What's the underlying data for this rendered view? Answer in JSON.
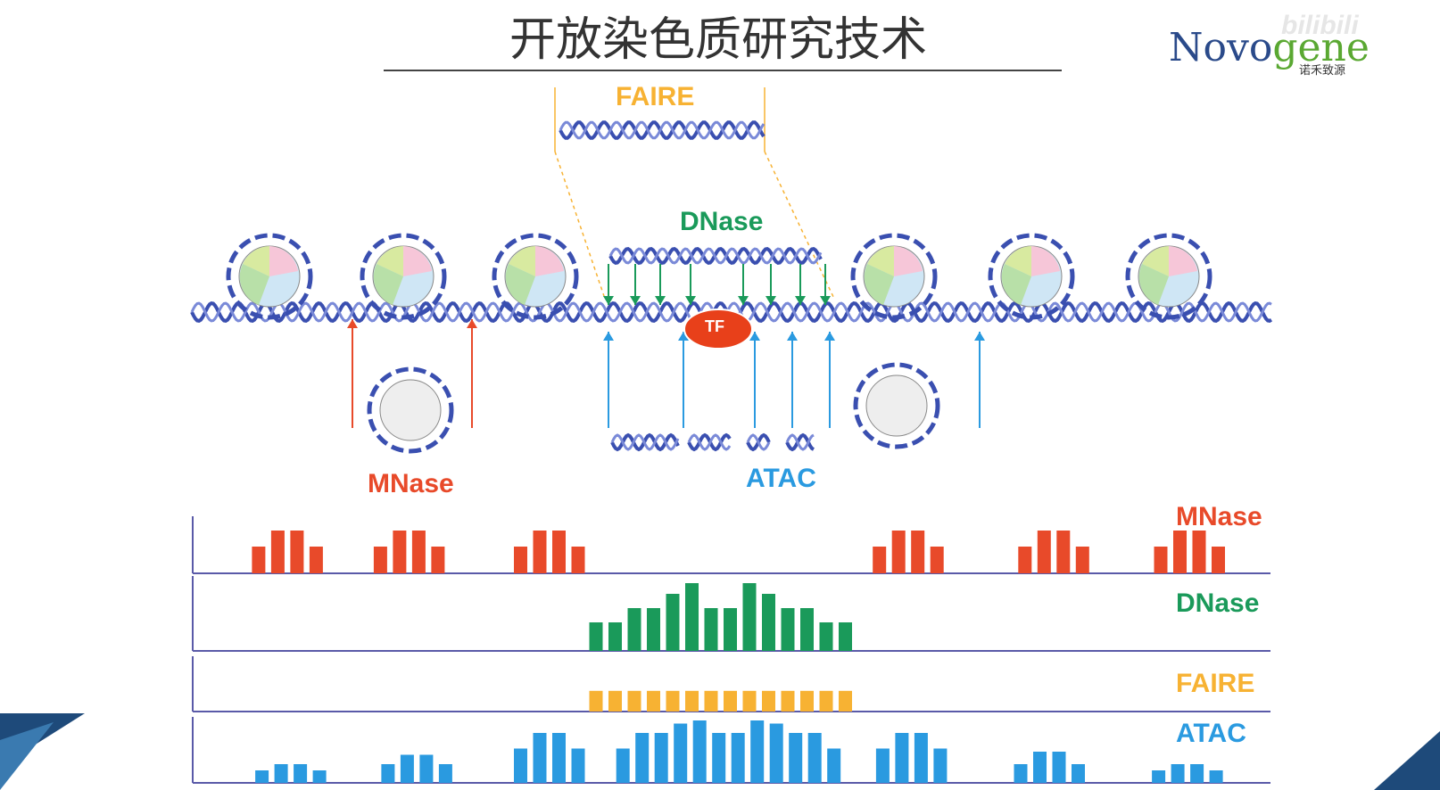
{
  "title": "开放染色质研究技术",
  "logo": {
    "text_a": "Novo",
    "text_b": "gene",
    "subtitle": "诺禾致源"
  },
  "watermark": "bilibili",
  "labels": {
    "faire": "FAIRE",
    "dnase": "DNase",
    "mnase": "MNase",
    "atac": "ATAC",
    "tf": "TF"
  },
  "colors": {
    "mnase": "#e84a2a",
    "dnase": "#1a9a5a",
    "faire": "#f7b233",
    "atac": "#2a9ae0",
    "dna": "#3a4fb0",
    "axis": "#5a5aa8"
  },
  "chart_data": [
    {
      "type": "bar",
      "name": "MNase",
      "label": "MNase",
      "color": "#e84a2a",
      "values": [
        0,
        0,
        0,
        0,
        0,
        0,
        0,
        0,
        0,
        0,
        0,
        0,
        0,
        0,
        0,
        0,
        0,
        0,
        0,
        0,
        0,
        0,
        0,
        0,
        0,
        0,
        0,
        0,
        0,
        0,
        0,
        0,
        0,
        0,
        0,
        0,
        0,
        0,
        0,
        0,
        0,
        0,
        0,
        0,
        0,
        0,
        0,
        0,
        0,
        0,
        0,
        0,
        0,
        0,
        0,
        0,
        0,
        0,
        0,
        0
      ]
    },
    {
      "type": "bar",
      "name": "DNase",
      "label": "DNase",
      "color": "#1a9a5a",
      "values": []
    },
    {
      "type": "bar",
      "name": "FAIRE",
      "label": "FAIRE",
      "color": "#f7b233",
      "values": []
    },
    {
      "type": "bar",
      "name": "ATAC",
      "label": "ATAC",
      "color": "#2a9ae0",
      "values": []
    }
  ],
  "tracks": [
    {
      "label": "MNase",
      "color": "#e84a2a",
      "groups": [
        {
          "x0": 0.055,
          "bars": [
            0.5,
            0.8,
            0.8,
            0.5
          ]
        },
        {
          "x0": 0.168,
          "bars": [
            0.5,
            0.8,
            0.8,
            0.5
          ]
        },
        {
          "x0": 0.298,
          "bars": [
            0.5,
            0.8,
            0.8,
            0.5
          ]
        },
        {
          "x0": 0.631,
          "bars": [
            0.5,
            0.8,
            0.8,
            0.5
          ]
        },
        {
          "x0": 0.766,
          "bars": [
            0.5,
            0.8,
            0.8,
            0.5
          ]
        },
        {
          "x0": 0.892,
          "bars": [
            0.5,
            0.8,
            0.8,
            0.5
          ]
        }
      ]
    },
    {
      "label": "DNase",
      "color": "#1a9a5a",
      "groups": [
        {
          "x0": 0.368,
          "bars": [
            0.4,
            0.4,
            0.6,
            0.6,
            0.8,
            0.95,
            0.6,
            0.6,
            0.95,
            0.8,
            0.6,
            0.6,
            0.4,
            0.4
          ]
        }
      ]
    },
    {
      "label": "FAIRE",
      "color": "#f7b233",
      "groups": [
        {
          "x0": 0.368,
          "bars": [
            0.4,
            0.4,
            0.4,
            0.4,
            0.4,
            0.4,
            0.4,
            0.4,
            0.4,
            0.4,
            0.4,
            0.4,
            0.4,
            0.4
          ]
        }
      ]
    },
    {
      "label": "ATAC",
      "color": "#2a9ae0",
      "groups": [
        {
          "x0": 0.058,
          "bars": [
            0.2,
            0.3,
            0.3,
            0.2
          ]
        },
        {
          "x0": 0.175,
          "bars": [
            0.3,
            0.45,
            0.45,
            0.3
          ]
        },
        {
          "x0": 0.298,
          "bars": [
            0.55,
            0.8,
            0.8,
            0.55
          ]
        },
        {
          "x0": 0.393,
          "bars": [
            0.55,
            0.8,
            0.8,
            0.95,
            1.0,
            0.8,
            0.8,
            1.0,
            0.95,
            0.8,
            0.8,
            0.55
          ]
        },
        {
          "x0": 0.634,
          "bars": [
            0.55,
            0.8,
            0.8,
            0.55
          ]
        },
        {
          "x0": 0.762,
          "bars": [
            0.3,
            0.5,
            0.5,
            0.3
          ]
        },
        {
          "x0": 0.89,
          "bars": [
            0.2,
            0.3,
            0.3,
            0.2
          ]
        }
      ]
    }
  ]
}
